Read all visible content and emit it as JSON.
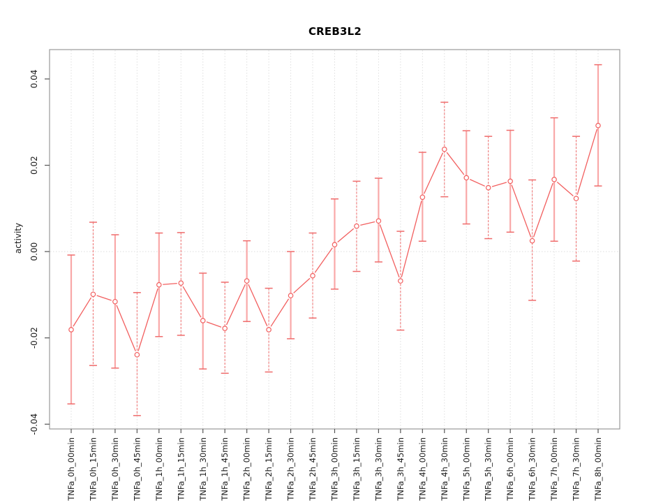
{
  "chart_data": {
    "type": "line",
    "title": "CREB3L2",
    "xlabel": "",
    "ylabel": "activity",
    "ylim": [
      -0.0411,
      0.0468
    ],
    "yticks": [
      -0.04,
      -0.02,
      0,
      0.02,
      0.04
    ],
    "grid": {
      "vertical": "dotted line at every category",
      "horizontal": "dotted line at y=0 only"
    },
    "legend": "none",
    "marker": "open-circle",
    "error_bars": true,
    "categories": [
      "TNFa_0h_00min",
      "TNFa_0h_15min",
      "TNFa_0h_30min",
      "TNFa_0h_45min",
      "TNFa_1h_00min",
      "TNFa_1h_15min",
      "TNFa_1h_30min",
      "TNFa_1h_45min",
      "TNFa_2h_00min",
      "TNFa_2h_15min",
      "TNFa_2h_30min",
      "TNFa_2h_45min",
      "TNFa_3h_00min",
      "TNFa_3h_15min",
      "TNFa_3h_30min",
      "TNFa_3h_45min",
      "TNFa_4h_00min",
      "TNFa_4h_30min",
      "TNFa_5h_00min",
      "TNFa_5h_30min",
      "TNFa_6h_00min",
      "TNFa_6h_30min",
      "TNFa_7h_00min",
      "TNFa_7h_30min",
      "TNFa_8h_00min"
    ],
    "series": [
      {
        "name": "activity",
        "values": [
          -0.0181,
          -0.0099,
          -0.0116,
          -0.0239,
          -0.0077,
          -0.0073,
          -0.016,
          -0.0178,
          -0.0068,
          -0.0181,
          -0.0102,
          -0.0056,
          0.0016,
          0.0059,
          0.0071,
          -0.0068,
          0.0126,
          0.0237,
          0.0171,
          0.0148,
          0.0163,
          0.0025,
          0.0167,
          0.0123,
          0.0292
        ],
        "ci_low": [
          -0.0353,
          -0.0264,
          -0.027,
          -0.038,
          -0.0197,
          -0.0194,
          -0.0272,
          -0.0282,
          -0.0162,
          -0.0279,
          -0.0202,
          -0.0154,
          -0.0087,
          -0.0046,
          -0.0024,
          -0.0182,
          0.0024,
          0.0127,
          0.0064,
          0.003,
          0.0045,
          -0.0113,
          0.0024,
          -0.0022,
          0.0152
        ],
        "ci_high": [
          -0.0008,
          0.0068,
          0.0039,
          -0.0095,
          0.0043,
          0.0044,
          -0.005,
          -0.0071,
          0.0025,
          -0.0085,
          0.0,
          0.0043,
          0.0122,
          0.0163,
          0.017,
          0.0047,
          0.023,
          0.0346,
          0.028,
          0.0267,
          0.0281,
          0.0166,
          0.031,
          0.0267,
          0.0433
        ]
      }
    ],
    "colors": {
      "line": "#f25f5f",
      "marker_stroke": "#f25f5f",
      "marker_fill": "#ffffff",
      "error_bar_solid": "#f9a8a8",
      "error_bar_cap": "#ef6b6b",
      "error_bar_dashed": "#ef6b6b",
      "grid": "#dedede",
      "frame": "#999999",
      "tick": "#555555",
      "text": "#1a1a1a"
    }
  }
}
